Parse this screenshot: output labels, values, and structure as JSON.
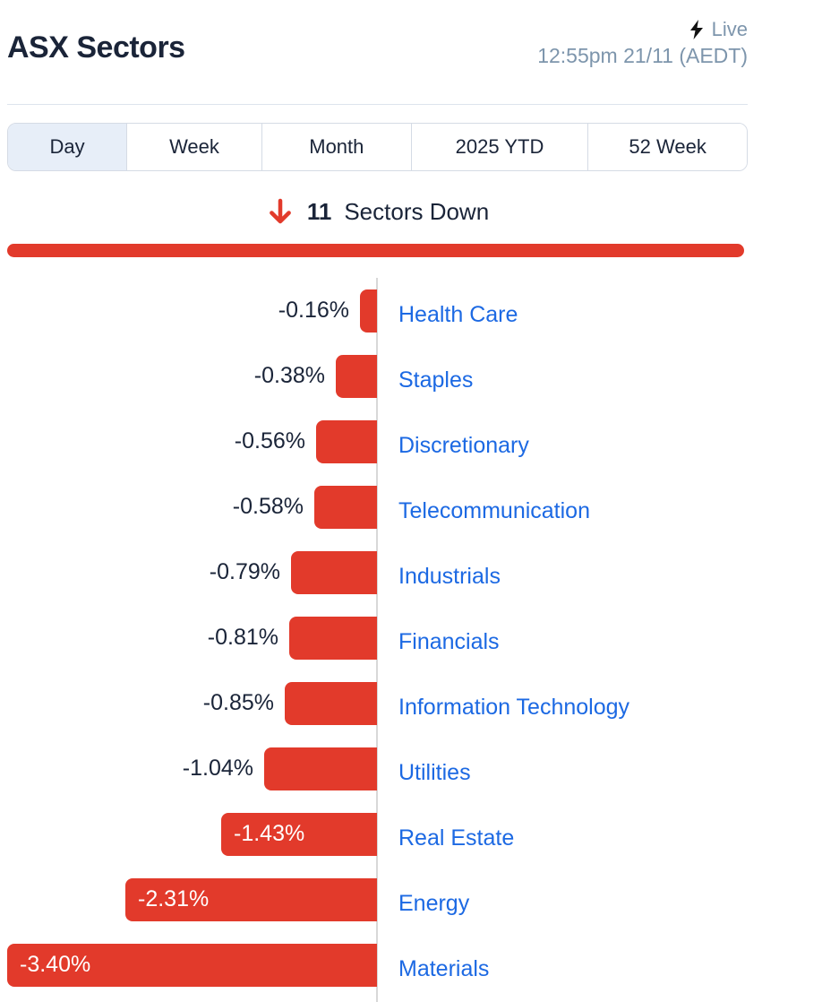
{
  "header": {
    "title": "ASX Sectors",
    "live_label": "Live",
    "timestamp": "12:55pm 21/11 (AEDT)"
  },
  "tabs": [
    {
      "label": "Day",
      "selected": true
    },
    {
      "label": "Week",
      "selected": false
    },
    {
      "label": "Month",
      "selected": false
    },
    {
      "label": "2025 YTD",
      "selected": false
    },
    {
      "label": "52 Week",
      "selected": false
    }
  ],
  "summary": {
    "count": "11",
    "text": "Sectors Down"
  },
  "chart_data": {
    "type": "bar",
    "orientation": "horizontal",
    "unit": "%",
    "categories": [
      "Health Care",
      "Staples",
      "Discretionary",
      "Telecommunication",
      "Industrials",
      "Financials",
      "Information Technology",
      "Utilities",
      "Real Estate",
      "Energy",
      "Materials"
    ],
    "values": [
      -0.16,
      -0.38,
      -0.56,
      -0.58,
      -0.79,
      -0.81,
      -0.85,
      -1.04,
      -1.43,
      -2.31,
      -3.4
    ],
    "labels": [
      "-0.16%",
      "-0.38%",
      "-0.56%",
      "-0.58%",
      "-0.79%",
      "-0.81%",
      "-0.85%",
      "-1.04%",
      "-1.43%",
      "-2.31%",
      "-3.40%"
    ],
    "label_inside": [
      false,
      false,
      false,
      false,
      false,
      false,
      false,
      false,
      true,
      true,
      true
    ],
    "xlim": [
      -3.4,
      0
    ],
    "grid": false,
    "legend": "none",
    "bar_color": "#e23a2b",
    "category_label_color": "#1c69e3"
  },
  "colors": {
    "red": "#e23a2b",
    "blue": "#1c69e3",
    "dark": "#1a2438",
    "steel": "#7d95ac",
    "axis-line": "#d8d8d8",
    "tab-border": "#d5dbe5",
    "tab-selected": "#e7eef8",
    "divider": "#dde4ed"
  }
}
